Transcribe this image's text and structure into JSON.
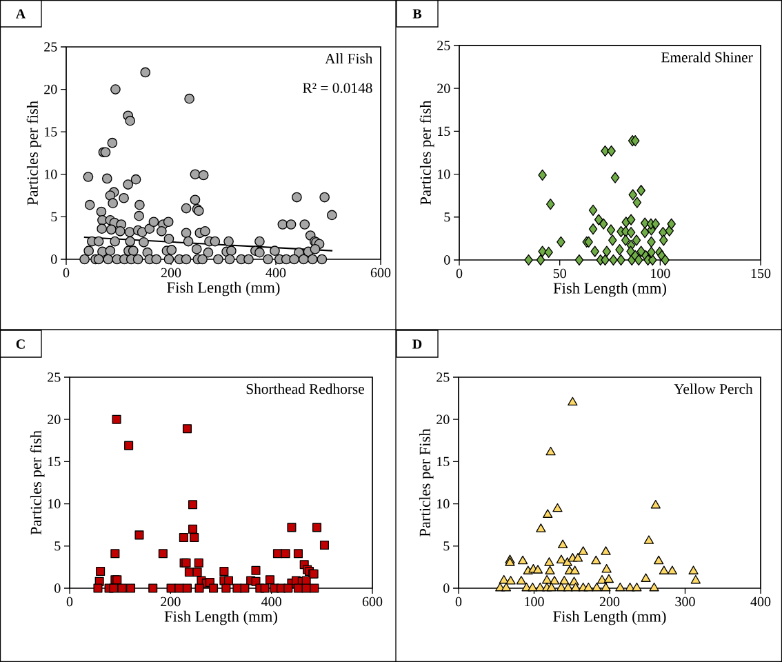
{
  "chart_data": [
    {
      "type": "scatter",
      "xlabel": "Fish Length (mm)",
      "ylabel": "Particles per fish",
      "annotations": [
        "A",
        "All Fish",
        "R² = 0.0148"
      ],
      "xlim": [
        0,
        600
      ],
      "xticks": [
        0,
        200,
        400,
        600
      ],
      "ylim": [
        0,
        25
      ],
      "yticks": [
        0,
        5,
        10,
        15,
        20,
        25
      ],
      "marker": "circle",
      "series": [
        {
          "color": "#a6a6a6",
          "x": [
            151,
            94,
            235,
            118,
            122,
            88,
            71,
            75,
            42,
            78,
            133,
            118,
            246,
            262,
            91,
            84,
            89,
            110,
            45,
            140,
            139,
            67,
            246,
            229,
            250,
            253,
            440,
            493,
            507,
            413,
            429,
            455,
            466,
            474,
            477,
            483,
            69,
            84,
            92,
            105,
            68,
            86,
            103,
            121,
            137,
            145,
            159,
            167,
            185,
            195,
            182,
            196,
            229,
            255,
            265,
            49,
            62,
            93,
            122,
            148,
            233,
            273,
            284,
            310,
            369,
            43,
            69,
            84,
            119,
            128,
            155,
            192,
            201,
            249,
            271,
            306,
            315,
            361,
            369,
            398,
            444,
            462,
            475,
            35,
            56,
            62,
            80,
            97,
            111,
            124,
            137,
            159,
            172,
            196,
            216,
            229,
            251,
            260,
            290,
            312,
            334,
            348,
            385,
            407,
            420,
            435,
            453,
            470,
            488
          ],
          "values": [
            22.0,
            20.0,
            18.9,
            16.9,
            16.3,
            13.7,
            12.6,
            12.6,
            9.7,
            9.5,
            9.4,
            8.8,
            10.0,
            9.9,
            7.9,
            7.5,
            6.6,
            7.2,
            6.4,
            6.4,
            5.1,
            5.6,
            7.0,
            6.0,
            5.9,
            5.7,
            7.3,
            7.3,
            5.2,
            4.1,
            4.1,
            4.1,
            2.8,
            2.1,
            2.0,
            1.8,
            4.6,
            4.6,
            4.3,
            4.1,
            3.6,
            3.5,
            3.3,
            3.2,
            3.4,
            3.2,
            3.6,
            4.4,
            4.1,
            4.4,
            3.3,
            2.4,
            3.1,
            3.1,
            3.3,
            2.1,
            2.1,
            2.1,
            2.1,
            2.0,
            2.1,
            2.1,
            2.1,
            2.1,
            2.1,
            1.0,
            0.9,
            1.0,
            1.0,
            1.0,
            0.8,
            1.0,
            1.1,
            1.2,
            0.8,
            0.9,
            1.0,
            1.0,
            0.8,
            1.0,
            0.8,
            0.9,
            1.2,
            0,
            0,
            0,
            0,
            0,
            0,
            0,
            0,
            0,
            0,
            0,
            0,
            0,
            0,
            0,
            0,
            0,
            0,
            0,
            0,
            0,
            0,
            0,
            0,
            0,
            0
          ]
        },
        {
          "type": "line",
          "color": "#000000",
          "marker": "none",
          "x": [
            34,
            508
          ],
          "values": [
            2.6,
            1.0
          ]
        }
      ]
    },
    {
      "type": "scatter",
      "xlabel": "Fish Length (mm)",
      "ylabel": "Particles per fish",
      "annotations": [
        "B",
        "Emerald Shiner"
      ],
      "xlim": [
        0,
        150
      ],
      "xticks": [
        0,
        50,
        100,
        150
      ],
      "ylim": [
        0,
        25
      ],
      "yticks": [
        0,
        5,
        10,
        15,
        20,
        25
      ],
      "marker": "diamond",
      "series": [
        {
          "color": "#70ad47",
          "x": [
            34.5,
            40.5,
            41.4,
            44.5,
            41.4,
            45.4,
            50.6,
            59.7,
            63.4,
            64.4,
            66.6,
            66.6,
            67.5,
            69.4,
            71.8,
            72.6,
            75.7,
            77.6,
            73.4,
            70.3,
            72.6,
            75.5,
            76.3,
            76.7,
            79.8,
            80.5,
            80.5,
            83.0,
            82.8,
            82.8,
            85.5,
            85.5,
            85.5,
            85.3,
            85.9,
            86.2,
            87.6,
            86.4,
            88.5,
            90.5,
            88.2,
            87.6,
            89.3,
            90.5,
            92.4,
            92.4,
            92.8,
            93.9,
            95.6,
            95.6,
            95.4,
            97.7,
            96.2,
            95.6,
            99.7,
            101.4,
            101.7,
            100.8,
            102.5,
            104.6,
            105.6
          ],
          "values": [
            0,
            0,
            1.0,
            0.9,
            9.9,
            6.5,
            2.1,
            0,
            2.1,
            2.1,
            3.6,
            5.8,
            1.0,
            4.7,
            4.2,
            12.7,
            12.7,
            9.6,
            1.0,
            0,
            0,
            3.5,
            2.3,
            0,
            1.2,
            0,
            3.3,
            4.4,
            3.3,
            2.3,
            4.7,
            3.2,
            1.7,
            1.0,
            0,
            13.9,
            13.9,
            7.6,
            6.7,
            8.1,
            2.3,
            0.5,
            0,
            1.0,
            4.3,
            3.2,
            0.5,
            0,
            2.1,
            3.5,
            4.2,
            4.2,
            0,
            0.9,
            0.9,
            3.2,
            2.3,
            0.5,
            0,
            3.4,
            4.2
          ]
        }
      ]
    },
    {
      "type": "scatter",
      "xlabel": "Fish Length (mm)",
      "ylabel": "Particles per fish",
      "annotations": [
        "C",
        "Shorthead Redhorse"
      ],
      "xlim": [
        0,
        600
      ],
      "xticks": [
        0,
        200,
        400,
        600
      ],
      "ylim": [
        0,
        25
      ],
      "yticks": [
        0,
        5,
        10,
        15,
        20,
        25
      ],
      "marker": "square",
      "series": [
        {
          "color": "#c00000",
          "x": [
            93,
            233,
            117,
            244,
            138,
            226,
            244,
            247,
            90,
            185,
            440,
            490,
            505,
            412,
            428,
            453,
            465,
            471,
            475,
            482,
            61,
            59,
            90,
            94,
            227,
            231,
            256,
            237,
            253,
            261,
            271,
            278,
            306,
            306,
            315,
            359,
            369,
            369,
            397,
            440,
            449,
            461,
            469,
            484,
            56,
            78,
            87,
            104,
            121,
            165,
            201,
            217,
            233,
            257,
            285,
            310,
            332,
            347,
            377,
            387,
            406,
            419,
            433,
            453,
            469,
            485
          ],
          "values": [
            20.0,
            18.9,
            16.9,
            9.9,
            6.3,
            6.0,
            7.0,
            6.0,
            4.1,
            4.1,
            7.2,
            7.2,
            5.1,
            4.1,
            4.1,
            4.1,
            2.8,
            2.2,
            2.0,
            1.7,
            2.0,
            0.8,
            1.0,
            1.0,
            3.0,
            3.0,
            3.0,
            1.9,
            1.9,
            0.9,
            0.6,
            0.7,
            2.0,
            0.9,
            0.9,
            0.9,
            2.1,
            0.8,
            1.0,
            0.6,
            0.9,
            0.8,
            0.9,
            1.7,
            0,
            0,
            0,
            0,
            0,
            0,
            0,
            0,
            0,
            0,
            0,
            0,
            0,
            0,
            0,
            0,
            0,
            0,
            0,
            0,
            0,
            0
          ]
        }
      ]
    },
    {
      "type": "scatter",
      "xlabel": "Fish Length (mm)",
      "ylabel": "Particles per Fish",
      "annotations": [
        "D",
        "Yellow Perch"
      ],
      "xlim": [
        0,
        400
      ],
      "xticks": [
        0,
        100,
        200,
        300,
        400
      ],
      "ylim": [
        0,
        25
      ],
      "yticks": [
        0,
        5,
        10,
        15,
        20,
        25
      ],
      "marker": "triangle",
      "series": [
        {
          "color": "#ffd966",
          "x": [
            151,
            122,
            261,
            131,
            118,
            109,
            252,
            138,
            68,
            68,
            85,
            120,
            136,
            144,
            151,
            158,
            165,
            182,
            195,
            265,
            92,
            99,
            105,
            121,
            147,
            154,
            196,
            272,
            283,
            311,
            314,
            248,
            60,
            69,
            83,
            117,
            127,
            140,
            153,
            190,
            199,
            55,
            63,
            90,
            98,
            108,
            117,
            123,
            136,
            145,
            155,
            165,
            172,
            183,
            195,
            214,
            227,
            236,
            259
          ],
          "values": [
            22.0,
            16.1,
            9.8,
            9.4,
            8.7,
            7.0,
            5.6,
            5.1,
            3.3,
            3.0,
            3.2,
            3.0,
            3.3,
            3.0,
            3.5,
            3.5,
            4.3,
            3.2,
            4.3,
            3.2,
            2.0,
            2.2,
            2.1,
            2.0,
            2.0,
            2.0,
            2.2,
            2.0,
            2.0,
            2.0,
            0.9,
            1.1,
            0.9,
            0.8,
            0.8,
            0.9,
            0.8,
            0.8,
            0.7,
            0.9,
            1.0,
            0,
            0,
            0,
            0,
            0,
            0,
            0,
            0,
            0,
            0,
            0,
            0,
            0,
            0,
            0,
            0,
            0,
            0
          ]
        }
      ]
    }
  ]
}
